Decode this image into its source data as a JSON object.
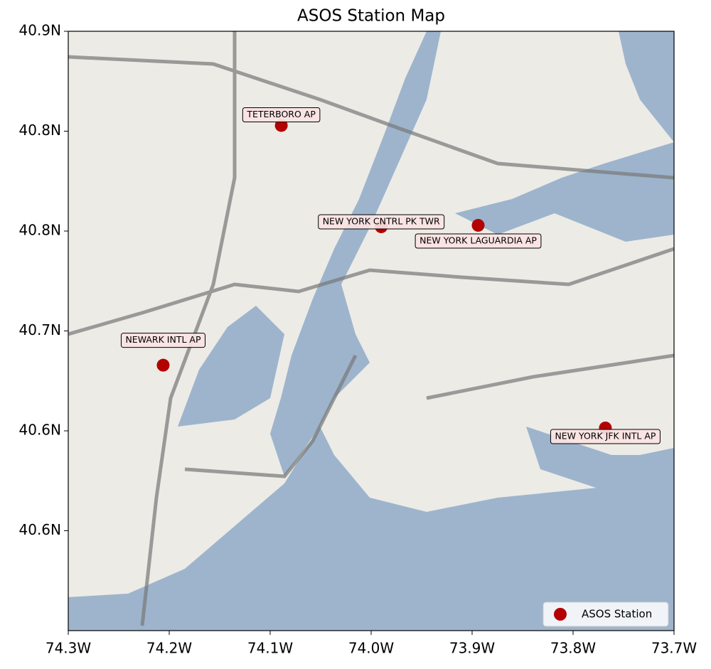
{
  "chart_data": {
    "type": "scatter",
    "title": "ASOS Station Map",
    "xlim": [
      -74.3,
      -73.7
    ],
    "ylim": [
      40.48,
      40.9
    ],
    "xticks": [
      {
        "value": -74.3,
        "label": "74.3W"
      },
      {
        "value": -74.2,
        "label": "74.2W"
      },
      {
        "value": -74.1,
        "label": "74.1W"
      },
      {
        "value": -74.0,
        "label": "74.0W"
      },
      {
        "value": -73.9,
        "label": "73.9W"
      },
      {
        "value": -73.8,
        "label": "73.8W"
      },
      {
        "value": -73.7,
        "label": "73.7W"
      }
    ],
    "yticks": [
      {
        "value": 40.9,
        "label": "40.9N"
      },
      {
        "value": 40.83,
        "label": "40.8N"
      },
      {
        "value": 40.76,
        "label": "40.8N"
      },
      {
        "value": 40.69,
        "label": "40.7N"
      },
      {
        "value": 40.62,
        "label": "40.6N"
      },
      {
        "value": 40.55,
        "label": "40.6N"
      }
    ],
    "series": [
      {
        "name": "ASOS Station",
        "color": "#b30000",
        "labels": [
          "TETERBORO AP",
          "NEW YORK CNTRL PK TWR",
          "NEW YORK LAGUARDIA AP",
          "NEWARK INTL AP",
          "NEW YORK JFK INTL AP"
        ],
        "x": [
          -74.089,
          -73.99,
          -73.894,
          -74.206,
          -73.768
        ],
        "values": [
          40.834,
          40.763,
          40.764,
          40.666,
          40.622
        ]
      }
    ],
    "legend": "lower right"
  }
}
